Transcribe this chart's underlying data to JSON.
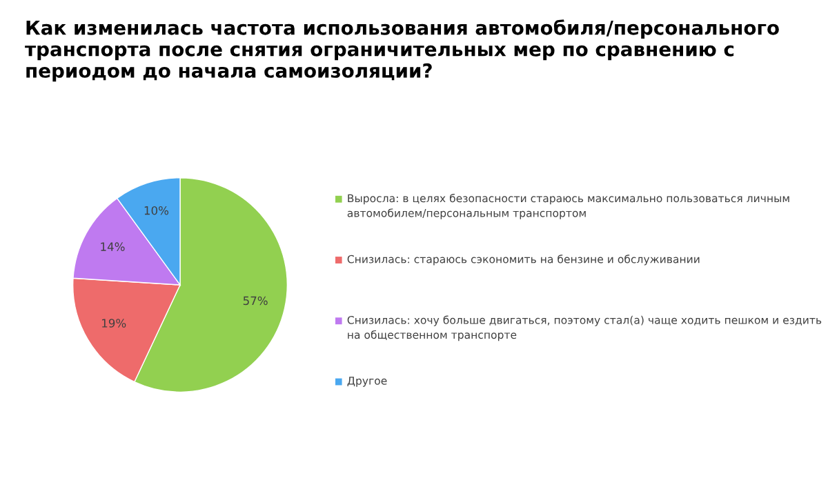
{
  "chart_data": {
    "type": "pie",
    "title": "Как изменилась частота использования автомобиля/персонального транспорта после снятия ограничительных мер по сравнению с периодом до начала самоизоляции?",
    "categories": [
      "Выросла: в целях безопасности стараюсь максимально пользоваться личным автомобилем/персональным транспортом",
      "Снизилась: стараюсь сэкономить на бензине и обслуживании",
      "Снизилась: хочу больше двигаться, поэтому стал(а) чаще ходить пешком и ездить на общественном транспорте",
      "Другое"
    ],
    "values": [
      57,
      19,
      14,
      10
    ],
    "value_labels": [
      "57%",
      "19%",
      "14%",
      "10%"
    ],
    "colors": [
      "#92d050",
      "#ee6b6b",
      "#bf7af0",
      "#4aa8f0"
    ],
    "legend": "right"
  }
}
